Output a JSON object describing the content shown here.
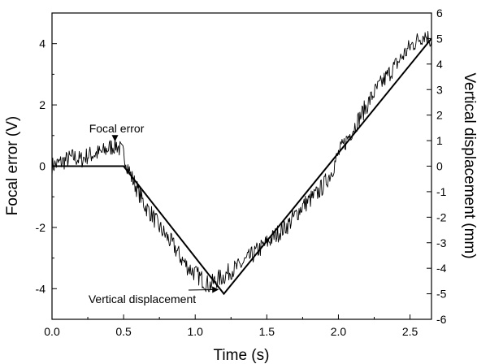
{
  "chart_data": {
    "type": "line",
    "title": "",
    "xlabel": "Time (s)",
    "ylabel_left": "Focal error (V)",
    "ylabel_right": "Vertical displacement (mm)",
    "xlim": [
      0.0,
      2.65
    ],
    "ylim_left": [
      -5,
      5
    ],
    "ylim_right": [
      -6,
      6
    ],
    "grid": false,
    "x_ticks": [
      0.0,
      0.5,
      1.0,
      1.5,
      2.0,
      2.5
    ],
    "x_tick_labels": [
      "0.0",
      "0.5",
      "1.0",
      "1.5",
      "2.0",
      "2.5"
    ],
    "y_left_ticks": [
      4,
      2,
      0,
      -2,
      -4
    ],
    "y_left_tick_labels": [
      "4",
      "2",
      "0",
      "-2",
      "-4"
    ],
    "y_right_ticks": [
      6,
      5,
      4,
      3,
      2,
      1,
      0,
      -1,
      -2,
      -3,
      -4,
      -5,
      -6
    ],
    "y_right_tick_labels": [
      "6",
      "5",
      "4",
      "3",
      "2",
      "1",
      "0",
      "-1",
      "-2",
      "-3",
      "-4",
      "-5",
      "-6"
    ],
    "series": [
      {
        "axis": "left",
        "noisy": true,
        "x": [
          0.0,
          0.05,
          0.1,
          0.15,
          0.2,
          0.25,
          0.3,
          0.35,
          0.4,
          0.45,
          0.5,
          0.55,
          0.6,
          0.65,
          0.7,
          0.75,
          0.8,
          0.85,
          0.9,
          0.95,
          1.0,
          1.05,
          1.1,
          1.15,
          1.2,
          1.25,
          1.3,
          1.35,
          1.4,
          1.45,
          1.5,
          1.55,
          1.6,
          1.65,
          1.7,
          1.75,
          1.8,
          1.85,
          1.9,
          1.95,
          2.0,
          2.05,
          2.1,
          2.15,
          2.2,
          2.25,
          2.3,
          2.35,
          2.4,
          2.45,
          2.5,
          2.55,
          2.6,
          2.65
        ],
        "y": [
          0.0,
          0.1,
          0.2,
          0.3,
          0.2,
          0.35,
          0.4,
          0.45,
          0.6,
          0.7,
          0.4,
          -0.3,
          -0.8,
          -1.3,
          -1.6,
          -2.0,
          -2.3,
          -2.6,
          -3.0,
          -3.3,
          -3.5,
          -3.7,
          -3.9,
          -3.7,
          -3.6,
          -3.4,
          -3.3,
          -3.1,
          -2.9,
          -2.7,
          -2.5,
          -2.3,
          -2.1,
          -1.9,
          -1.6,
          -1.3,
          -1.1,
          -0.9,
          -0.6,
          -0.2,
          0.4,
          0.8,
          1.2,
          1.6,
          2.0,
          2.4,
          2.7,
          3.0,
          3.3,
          3.6,
          3.9,
          4.1,
          4.3,
          4.1
        ]
      },
      {
        "axis": "right",
        "noisy": false,
        "x": [
          0.0,
          0.5,
          1.2,
          2.65
        ],
        "y": [
          0.0,
          0.0,
          -5.0,
          5.0
        ]
      }
    ],
    "annotations": [
      {
        "text": "Focal error",
        "target": [
          0.44,
          0.75
        ]
      },
      {
        "text": "Vertical displacement",
        "target": [
          1.17,
          -3.95
        ]
      }
    ]
  }
}
